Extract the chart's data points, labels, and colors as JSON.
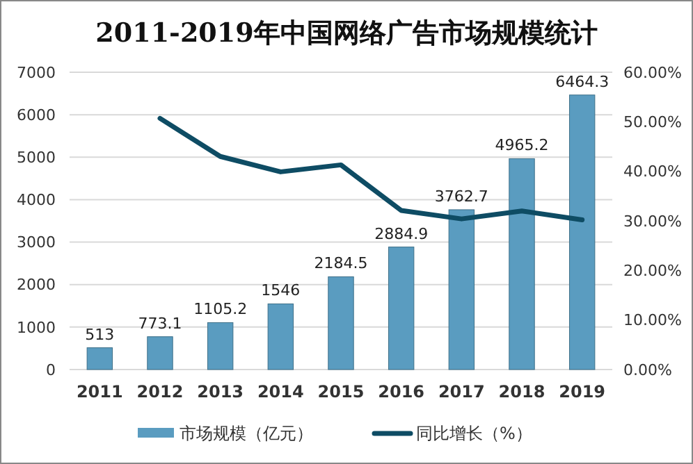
{
  "chart_data": {
    "type": "bar",
    "title": "2011-2019年中国网络广告市场规模统计",
    "categories": [
      "2011",
      "2012",
      "2013",
      "2014",
      "2015",
      "2016",
      "2017",
      "2018",
      "2019"
    ],
    "series": [
      {
        "name": "市场规模（亿元）",
        "color": "#5a9cc0",
        "values": [
          513,
          773.1,
          1105.2,
          1546,
          2184.5,
          2884.9,
          3762.7,
          4965.2,
          6464.3
        ],
        "value_labels": [
          "513",
          "773.1",
          "1105.2",
          "1546",
          "2184.5",
          "2884.9",
          "3762.7",
          "4965.2",
          "6464.3"
        ]
      },
      {
        "name": "同比增长（%）",
        "type": "line",
        "axis": "y2",
        "color": "#0e4c64",
        "values": [
          null,
          50.7,
          43,
          39.9,
          41.3,
          32.1,
          30.4,
          32,
          30.2
        ]
      }
    ],
    "ylim": [
      0,
      7000
    ],
    "yticks": [
      0,
      1000,
      2000,
      3000,
      4000,
      5000,
      6000,
      7000
    ],
    "y2lim": [
      0,
      60
    ],
    "y2ticks": [
      {
        "value": 0,
        "label": "0.00%"
      },
      {
        "value": 10,
        "label": "10.00%"
      },
      {
        "value": 20,
        "label": "20.00%"
      },
      {
        "value": 30,
        "label": "30.00%"
      },
      {
        "value": 40,
        "label": "40.00%"
      },
      {
        "value": 50,
        "label": "50.00%"
      },
      {
        "value": 60,
        "label": "60.00%"
      }
    ],
    "grid": "y",
    "legend": "bottom"
  }
}
